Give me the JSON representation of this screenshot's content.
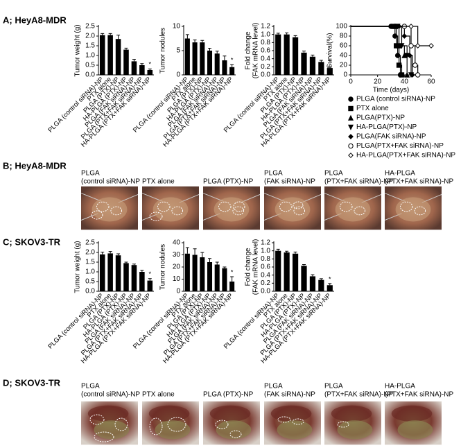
{
  "panel_labels": [
    "A; HeyA8-MDR",
    "B; HeyA8-MDR",
    "C; SKOV3-TR",
    "D; SKOV3-TR"
  ],
  "photo_rows": [
    {
      "labels": [
        [
          "PLGA",
          "(control siRNA)-NP"
        ],
        [
          "PTX alone"
        ],
        [
          "PLGA (PTX)-NP"
        ],
        [
          "PLGA",
          "(FAK siRNA)-NP"
        ],
        [
          "PLGA",
          "(PTX+FAK siRNA)-NP"
        ],
        [
          "HA-PLGA",
          "(PTX+FAK siRNA)-NP"
        ]
      ]
    },
    {
      "labels": [
        [
          "PLGA",
          "(control siRNA)-NP"
        ],
        [
          "PTX alone"
        ],
        [
          "PLGA (PTX)-NP"
        ],
        [
          "PLGA",
          "(FAK siRNA)-NP"
        ],
        [
          "PLGA",
          "(PTX+FAK siRNA)-NP"
        ],
        [
          "HA-PLGA",
          "(PTX+FAK siRNA)-NP"
        ]
      ]
    }
  ],
  "chart_data": [
    {
      "type": "bar",
      "ylabel": [
        "Tumor weight (g)"
      ],
      "color": "#000000",
      "categories": [
        "PLGA (control siRNA)-NP",
        "PTX alone",
        "PLGA (PTX)-NP",
        "HA-PLGA (PTX)-NP",
        "PLGA (FAK siRNA)-NP",
        "PLGA (PTX+FAK siRNA)-NP",
        "HA-PLGA (PTX+FAK siRNA)-NP"
      ],
      "values": [
        2.05,
        2.05,
        1.85,
        1.3,
        0.7,
        0.5,
        0.25
      ],
      "errors": [
        0.08,
        0.08,
        0.2,
        0.08,
        0.1,
        0.08,
        0.06
      ],
      "significance_label": "*",
      "ylim": [
        0,
        2.5
      ],
      "yticks": [
        {
          "value": 0,
          "label": "0.0"
        },
        0.5,
        {
          "value": 1,
          "label": "1.0"
        },
        1.5,
        {
          "value": 2,
          "label": "2.0"
        },
        2.5
      ]
    },
    {
      "type": "bar",
      "ylabel": [
        "Tumor nodules"
      ],
      "color": "#000000",
      "categories": [
        "PLGA (control siRNA)-NP",
        "PTX alone",
        "PLGA (PTX)-NP",
        "HA-PLGA (PTX)-NP",
        "PLGA (FAK siRNA)-NP",
        "PLGA (PTX+FAK siRNA)-NP",
        "HA-PLGA (PTX+FAK siRNA)-NP"
      ],
      "values": [
        7.5,
        6.7,
        6.7,
        5.0,
        4.4,
        3.0,
        1.6
      ],
      "errors": [
        0.8,
        0.5,
        0.4,
        0.5,
        0.5,
        0.9,
        0.5
      ],
      "significance_label": "*",
      "ylim": [
        0,
        10
      ],
      "yticks": [
        0,
        5,
        10
      ]
    },
    {
      "type": "bar",
      "ylabel": [
        "Fold change",
        "(FAK mRNA level)"
      ],
      "color": "#000000",
      "categories": [
        "PLGA (control siRNA)-NP",
        "PTX alone",
        "PLGA (PTX)-NP",
        "HA-PLGA (PTX)-NP",
        "PLGA (FAK siRNA)-NP",
        "PLGA (PTX+FAK siRNA)-NP",
        "HA-PLGA (PTX+FAK siRNA)-NP"
      ],
      "values": [
        1.0,
        1.0,
        0.93,
        0.55,
        0.45,
        0.32,
        0.17
      ],
      "errors": [
        0.03,
        0.04,
        0.04,
        0.04,
        0.04,
        0.04,
        0.03
      ],
      "significance_label": "*",
      "ylim": [
        0,
        1.2
      ],
      "yticks": [
        {
          "value": 0,
          "label": "0.0"
        },
        0.2,
        0.4,
        0.6,
        0.8,
        {
          "value": 1,
          "label": "1.0"
        },
        1.2
      ]
    },
    {
      "type": "line",
      "ylabel": [
        "Survival(%)"
      ],
      "xlabel": "Time (days)",
      "step": true,
      "xlim": [
        0,
        60
      ],
      "xticks": [
        0,
        20,
        40,
        60
      ],
      "ylim": [
        0,
        100
      ],
      "yticks": [
        0,
        20,
        40,
        60,
        80,
        100
      ],
      "series": [
        {
          "name": "PLGA (control siRNA)-NP",
          "color": "#000000",
          "marker": "circle",
          "x": [
            0,
            30,
            33,
            35,
            37
          ],
          "y": [
            100,
            100,
            80,
            40,
            0
          ]
        },
        {
          "name": "PTX alone",
          "color": "#000000",
          "marker": "square",
          "x": [
            0,
            32,
            34,
            36,
            38
          ],
          "y": [
            100,
            100,
            60,
            20,
            0
          ]
        },
        {
          "name": "PLGA(PTX)-NP",
          "color": "#000000",
          "marker": "triangle-up",
          "x": [
            0,
            33,
            36,
            40,
            42
          ],
          "y": [
            100,
            100,
            60,
            40,
            0
          ]
        },
        {
          "name": "HA-PLGA(PTX)-NP",
          "color": "#000000",
          "marker": "triangle-down",
          "x": [
            0,
            35,
            38,
            42,
            45
          ],
          "y": [
            100,
            100,
            60,
            40,
            0
          ]
        },
        {
          "name": "PLGA(FAK siRNA)-NP",
          "color": "#000000",
          "marker": "diamond",
          "x": [
            0,
            36,
            40,
            44,
            46
          ],
          "y": [
            100,
            100,
            80,
            40,
            0
          ]
        },
        {
          "name": "PLGA(PTX+FAK siRNA)-NP",
          "color": "#000000",
          "marker": "circle-open",
          "x": [
            0,
            40,
            45,
            48,
            50
          ],
          "y": [
            100,
            100,
            60,
            20,
            0
          ]
        },
        {
          "name": "HA-PLGA(PTX+FAK siRNA)-NP",
          "color": "#000000",
          "marker": "diamond-open",
          "x": [
            0,
            45,
            50,
            60
          ],
          "y": [
            100,
            100,
            60,
            60
          ]
        }
      ]
    },
    {
      "type": "bar",
      "ylabel": [
        "Tumor weight (g)"
      ],
      "color": "#000000",
      "categories": [
        "PLGA (control siRNA)-NP",
        "PTX alone",
        "PLGA (PTX)-NP",
        "HA-PLGA (PTX)-NP",
        "PLGA (FAK siRNA)-NP",
        "PLGA (PTX+FAK siRNA)-NP",
        "HA-PLGA (PTX+FAK siRNA)-NP"
      ],
      "values": [
        1.9,
        1.95,
        1.85,
        1.45,
        1.35,
        1.0,
        0.55
      ],
      "errors": [
        0.12,
        0.1,
        0.08,
        0.05,
        0.05,
        0.08,
        0.1
      ],
      "significance_label": "*",
      "ylim": [
        0,
        2.5
      ],
      "yticks": [
        {
          "value": 0,
          "label": "0.0"
        },
        0.5,
        {
          "value": 1,
          "label": "1.0"
        },
        1.5,
        {
          "value": 2,
          "label": "2.0"
        },
        2.5
      ]
    },
    {
      "type": "bar",
      "ylabel": [
        "Tumor nodules"
      ],
      "color": "#000000",
      "categories": [
        "PLGA (control siRNA)-NP",
        "PTX alone",
        "PLGA (PTX)-NP",
        "HA-PLGA (PTX)-NP",
        "PLGA (FAK siRNA)-NP",
        "PLGA (PTX+FAK siRNA)-NP",
        "HA-PLGA (PTX+FAK siRNA)-NP"
      ],
      "values": [
        31,
        30,
        28,
        24,
        22,
        19,
        8
      ],
      "errors": [
        5,
        5,
        4,
        3,
        2,
        1,
        4
      ],
      "significance_label": "*",
      "ylim": [
        0,
        40
      ],
      "yticks": [
        0,
        10,
        20,
        30,
        40
      ]
    },
    {
      "type": "bar",
      "ylabel": [
        "Fold change",
        "(FAK mRNA level)"
      ],
      "color": "#000000",
      "categories": [
        "PLGA (control siRNA)-NP",
        "PTX alone",
        "PLGA (PTX)-NP",
        "HA-PLGA (PTX)-NP",
        "PLGA (FAK siRNA)-NP",
        "PLGA (PTX+FAK siRNA)-NP",
        "HA-PLGA (PTX+FAK siRNA)-NP"
      ],
      "values": [
        1.0,
        0.96,
        0.93,
        0.63,
        0.37,
        0.28,
        0.15
      ],
      "errors": [
        0.04,
        0.03,
        0.04,
        0.03,
        0.04,
        0.03,
        0.04
      ],
      "significance_label": "*",
      "ylim": [
        0,
        1.2
      ],
      "yticks": [
        {
          "value": 0,
          "label": "0.0"
        },
        0.2,
        0.4,
        0.6,
        0.8,
        {
          "value": 1,
          "label": "1.0"
        },
        1.2
      ]
    }
  ]
}
